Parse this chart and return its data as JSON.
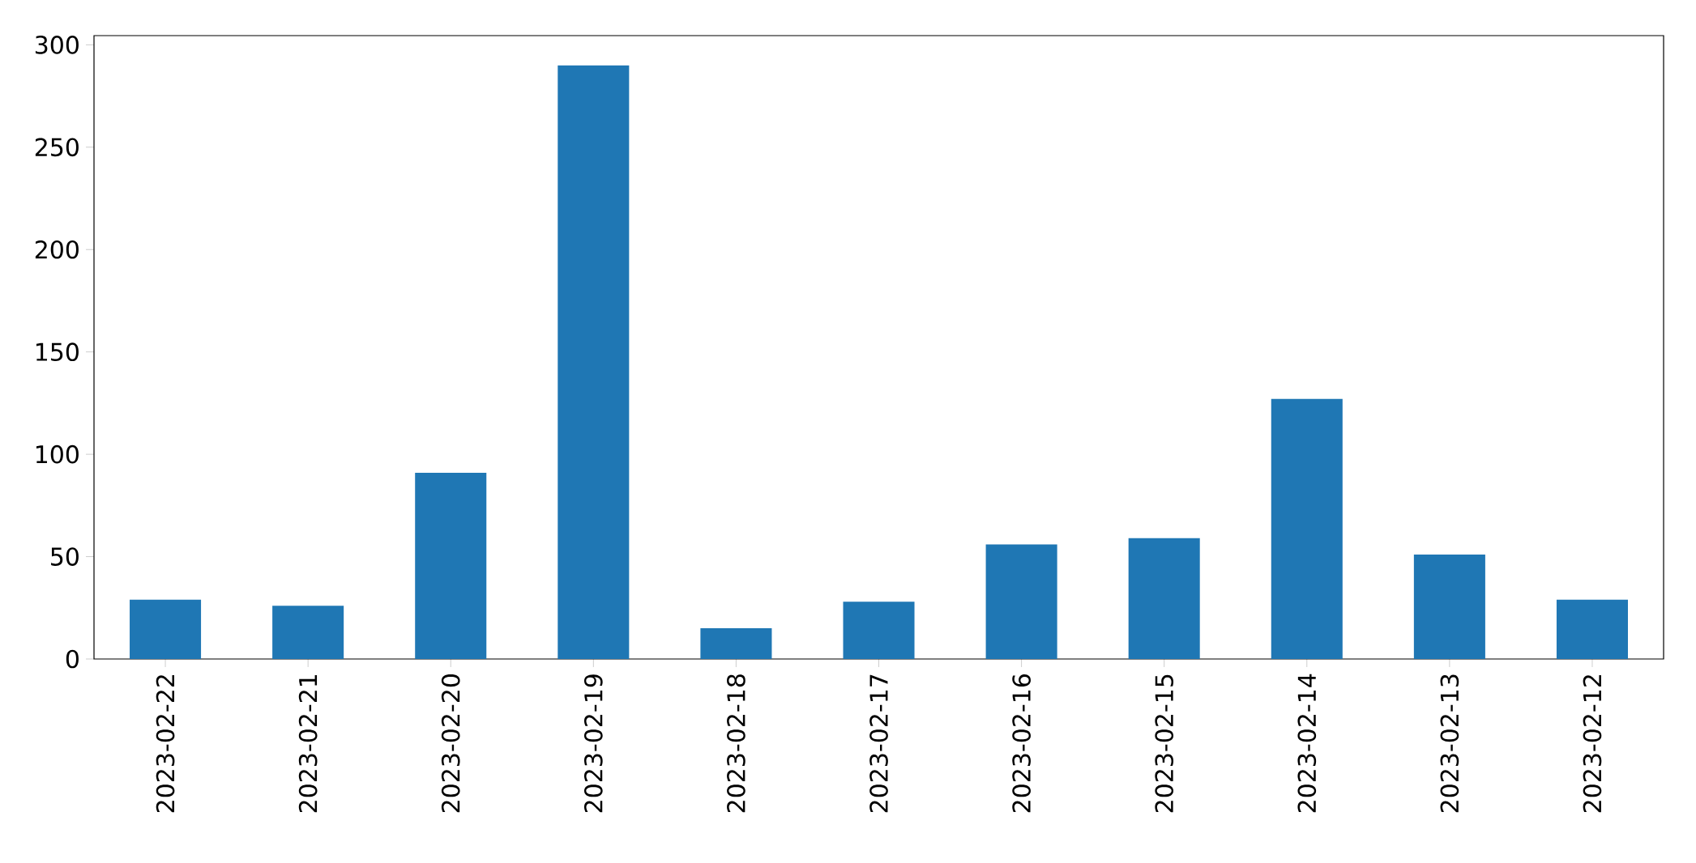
{
  "chart_data": {
    "type": "bar",
    "categories": [
      "2023-02-22",
      "2023-02-21",
      "2023-02-20",
      "2023-02-19",
      "2023-02-18",
      "2023-02-17",
      "2023-02-16",
      "2023-02-15",
      "2023-02-14",
      "2023-02-13",
      "2023-02-12"
    ],
    "values": [
      29,
      26,
      91,
      290,
      15,
      28,
      56,
      59,
      127,
      51,
      29
    ],
    "color": "#1f77b4",
    "ylim": [
      0,
      304.5
    ],
    "yticks": [
      0,
      50,
      100,
      150,
      200,
      250,
      300
    ]
  }
}
